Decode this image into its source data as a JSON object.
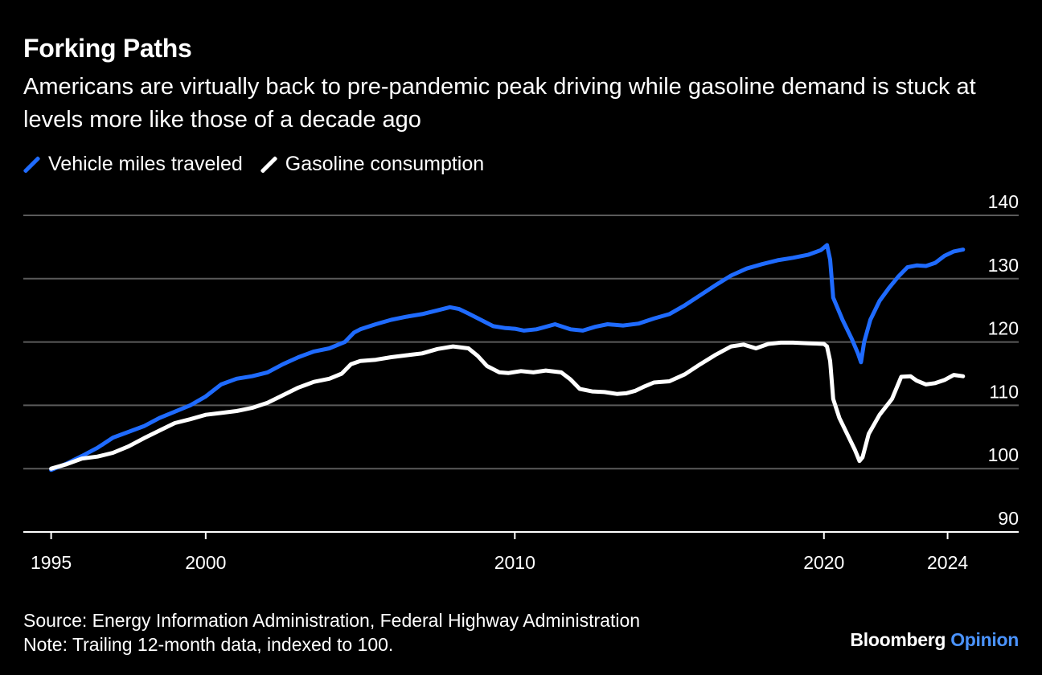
{
  "chart_data": {
    "type": "line",
    "title": "Forking Paths",
    "subtitle": "Americans are virtually back to pre-pandemic peak driving while gasoline demand is stuck at levels more like those of a decade ago",
    "ylim": [
      90,
      140
    ],
    "yticks": [
      90,
      100,
      110,
      120,
      130,
      140
    ],
    "y_axis_side": "right",
    "grid": true,
    "xlim": [
      1994.1,
      2026.3
    ],
    "xticks": [
      1995,
      2000,
      2010,
      2020,
      2024
    ],
    "legend": "top-left",
    "series": [
      {
        "name": "Vehicle miles traveled",
        "color": "#1f6bff",
        "points": [
          [
            1995.0,
            99.8
          ],
          [
            1995.5,
            100.8
          ],
          [
            1996.0,
            102.0
          ],
          [
            1996.5,
            103.3
          ],
          [
            1997.0,
            104.9
          ],
          [
            1997.5,
            105.8
          ],
          [
            1998.0,
            106.7
          ],
          [
            1998.5,
            108.0
          ],
          [
            1999.0,
            109.0
          ],
          [
            1999.5,
            110.0
          ],
          [
            2000.0,
            111.4
          ],
          [
            2000.5,
            113.3
          ],
          [
            2001.0,
            114.2
          ],
          [
            2001.5,
            114.6
          ],
          [
            2002.0,
            115.2
          ],
          [
            2002.5,
            116.5
          ],
          [
            2003.0,
            117.6
          ],
          [
            2003.5,
            118.5
          ],
          [
            2004.0,
            119.0
          ],
          [
            2004.5,
            120.0
          ],
          [
            2004.8,
            121.5
          ],
          [
            2005.0,
            122.0
          ],
          [
            2005.5,
            122.8
          ],
          [
            2006.0,
            123.5
          ],
          [
            2006.5,
            124.0
          ],
          [
            2007.0,
            124.4
          ],
          [
            2007.5,
            125.0
          ],
          [
            2007.9,
            125.5
          ],
          [
            2008.2,
            125.2
          ],
          [
            2008.5,
            124.5
          ],
          [
            2008.9,
            123.5
          ],
          [
            2009.3,
            122.5
          ],
          [
            2009.7,
            122.2
          ],
          [
            2010.0,
            122.1
          ],
          [
            2010.3,
            121.8
          ],
          [
            2010.7,
            122.0
          ],
          [
            2011.0,
            122.4
          ],
          [
            2011.3,
            122.8
          ],
          [
            2011.8,
            122.0
          ],
          [
            2012.2,
            121.8
          ],
          [
            2012.6,
            122.4
          ],
          [
            2013.0,
            122.8
          ],
          [
            2013.5,
            122.6
          ],
          [
            2014.0,
            122.9
          ],
          [
            2014.5,
            123.7
          ],
          [
            2015.0,
            124.4
          ],
          [
            2015.5,
            125.8
          ],
          [
            2016.0,
            127.4
          ],
          [
            2016.5,
            129.0
          ],
          [
            2017.0,
            130.5
          ],
          [
            2017.5,
            131.6
          ],
          [
            2018.0,
            132.3
          ],
          [
            2018.5,
            132.9
          ],
          [
            2019.0,
            133.3
          ],
          [
            2019.5,
            133.8
          ],
          [
            2019.9,
            134.5
          ],
          [
            2020.1,
            135.3
          ],
          [
            2020.2,
            133.0
          ],
          [
            2020.3,
            127.0
          ],
          [
            2020.6,
            123.5
          ],
          [
            2020.9,
            120.5
          ],
          [
            2021.1,
            118.2
          ],
          [
            2021.2,
            116.8
          ],
          [
            2021.3,
            120.0
          ],
          [
            2021.5,
            123.5
          ],
          [
            2021.8,
            126.5
          ],
          [
            2022.1,
            128.5
          ],
          [
            2022.4,
            130.3
          ],
          [
            2022.7,
            131.8
          ],
          [
            2023.0,
            132.1
          ],
          [
            2023.3,
            132.0
          ],
          [
            2023.6,
            132.5
          ],
          [
            2023.9,
            133.6
          ],
          [
            2024.2,
            134.3
          ],
          [
            2024.5,
            134.6
          ]
        ]
      },
      {
        "name": "Gasoline consumption",
        "color": "#ffffff",
        "points": [
          [
            1995.0,
            100.0
          ],
          [
            1995.5,
            100.7
          ],
          [
            1996.0,
            101.6
          ],
          [
            1996.5,
            101.9
          ],
          [
            1997.0,
            102.5
          ],
          [
            1997.5,
            103.5
          ],
          [
            1998.0,
            104.8
          ],
          [
            1998.5,
            106.0
          ],
          [
            1999.0,
            107.2
          ],
          [
            1999.5,
            107.8
          ],
          [
            2000.0,
            108.5
          ],
          [
            2000.5,
            108.8
          ],
          [
            2001.0,
            109.1
          ],
          [
            2001.5,
            109.6
          ],
          [
            2002.0,
            110.4
          ],
          [
            2002.5,
            111.6
          ],
          [
            2003.0,
            112.8
          ],
          [
            2003.5,
            113.7
          ],
          [
            2004.0,
            114.2
          ],
          [
            2004.4,
            115.0
          ],
          [
            2004.7,
            116.5
          ],
          [
            2005.0,
            117.0
          ],
          [
            2005.5,
            117.2
          ],
          [
            2006.0,
            117.6
          ],
          [
            2006.5,
            117.9
          ],
          [
            2007.0,
            118.2
          ],
          [
            2007.5,
            118.9
          ],
          [
            2008.0,
            119.3
          ],
          [
            2008.5,
            119.0
          ],
          [
            2008.8,
            117.8
          ],
          [
            2009.1,
            116.2
          ],
          [
            2009.5,
            115.2
          ],
          [
            2009.8,
            115.1
          ],
          [
            2010.2,
            115.4
          ],
          [
            2010.6,
            115.2
          ],
          [
            2011.0,
            115.5
          ],
          [
            2011.5,
            115.2
          ],
          [
            2011.8,
            114.1
          ],
          [
            2012.1,
            112.6
          ],
          [
            2012.5,
            112.2
          ],
          [
            2012.9,
            112.1
          ],
          [
            2013.3,
            111.8
          ],
          [
            2013.6,
            111.9
          ],
          [
            2013.9,
            112.3
          ],
          [
            2014.2,
            113.0
          ],
          [
            2014.5,
            113.6
          ],
          [
            2015.0,
            113.8
          ],
          [
            2015.5,
            114.9
          ],
          [
            2016.0,
            116.5
          ],
          [
            2016.5,
            118.0
          ],
          [
            2017.0,
            119.3
          ],
          [
            2017.4,
            119.6
          ],
          [
            2017.8,
            119.0
          ],
          [
            2018.2,
            119.7
          ],
          [
            2018.6,
            119.9
          ],
          [
            2019.0,
            119.9
          ],
          [
            2019.5,
            119.8
          ],
          [
            2020.0,
            119.7
          ],
          [
            2020.1,
            119.3
          ],
          [
            2020.2,
            117.0
          ],
          [
            2020.3,
            111.0
          ],
          [
            2020.5,
            108.0
          ],
          [
            2020.8,
            105.0
          ],
          [
            2021.0,
            103.0
          ],
          [
            2021.15,
            101.2
          ],
          [
            2021.25,
            101.8
          ],
          [
            2021.45,
            105.5
          ],
          [
            2021.8,
            108.5
          ],
          [
            2022.2,
            111.0
          ],
          [
            2022.5,
            114.5
          ],
          [
            2022.8,
            114.6
          ],
          [
            2023.0,
            113.9
          ],
          [
            2023.3,
            113.3
          ],
          [
            2023.6,
            113.5
          ],
          [
            2023.9,
            114.0
          ],
          [
            2024.2,
            114.8
          ],
          [
            2024.5,
            114.6
          ]
        ]
      }
    ]
  },
  "footer": {
    "source": "Source: Energy Information Administration, Federal Highway Administration",
    "note": "Note: Trailing 12-month data, indexed to 100."
  },
  "brand": {
    "name": "Bloomberg",
    "section": "Opinion"
  }
}
